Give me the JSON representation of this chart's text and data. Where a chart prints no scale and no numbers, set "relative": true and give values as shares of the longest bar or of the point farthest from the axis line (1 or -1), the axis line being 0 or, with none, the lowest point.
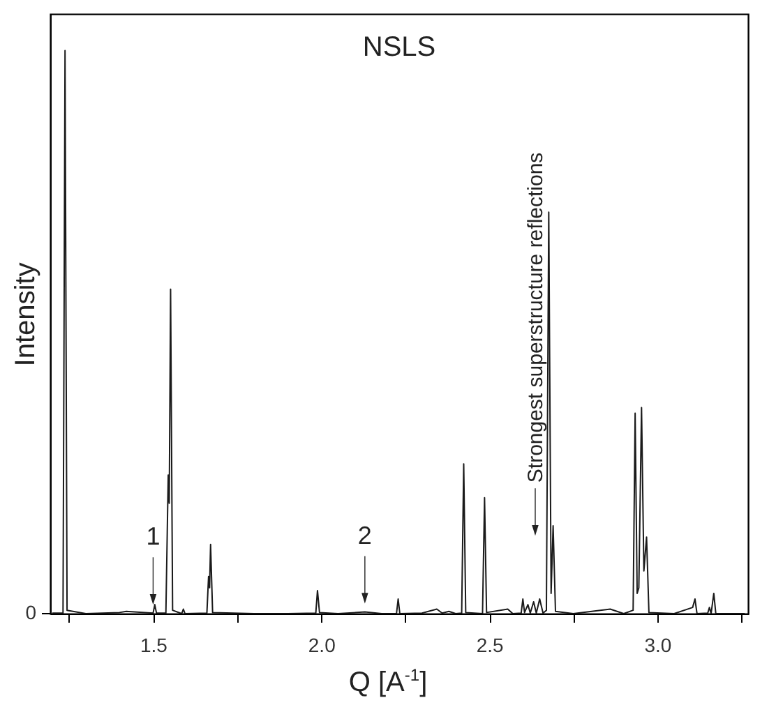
{
  "chart_data": {
    "type": "line",
    "title": "NSLS",
    "xlabel": "Q [A$^{-1}$]",
    "ylabel": "Intensity",
    "relative": true,
    "xlim": [
      1.194,
      3.27
    ],
    "xticks": [
      {
        "value": 1.25,
        "label": null
      },
      1.5,
      {
        "value": 1.75,
        "label": null
      },
      {
        "value": 2,
        "label": "2.0"
      },
      {
        "value": 2.25,
        "label": null
      },
      2.5,
      {
        "value": 2.75,
        "label": null
      },
      {
        "value": 3,
        "label": "3.0"
      },
      {
        "value": 3.25,
        "label": null
      }
    ],
    "annotations": [
      {
        "text": "1",
        "x": 1.5,
        "y": 0.001
      },
      {
        "text": "2",
        "x": 2.13,
        "y": 0.003
      },
      "Strongest superstructure reflections",
      "0"
    ],
    "series": [
      {
        "color": "#1a1a1a",
        "x": [
          1.2,
          1.232,
          1.238,
          1.244,
          1.3,
          1.4,
          1.42,
          1.5,
          1.505,
          1.51,
          1.538,
          1.545,
          1.548,
          1.552,
          1.558,
          1.585,
          1.59,
          1.595,
          1.66,
          1.665,
          1.668,
          1.671,
          1.677,
          1.8,
          1.9,
          1.984,
          1.989,
          1.995,
          2.05,
          2.13,
          2.18,
          2.224,
          2.229,
          2.234,
          2.3,
          2.344,
          2.36,
          2.38,
          2.4,
          2.418,
          2.424,
          2.43,
          2.48,
          2.486,
          2.492,
          2.555,
          2.57,
          2.595,
          2.6,
          2.605,
          2.615,
          2.622,
          2.632,
          2.64,
          2.65,
          2.66,
          2.67,
          2.677,
          2.684,
          2.69,
          2.697,
          2.75,
          2.86,
          2.9,
          2.928,
          2.934,
          2.94,
          2.945,
          2.953,
          2.96,
          2.968,
          2.975,
          3.05,
          3.105,
          3.112,
          3.118,
          3.15,
          3.155,
          3.16,
          3.168,
          3.174,
          3.26
        ],
        "values": [
          0.001,
          0.001,
          1.0,
          0.006,
          0,
          0.002,
          0.004,
          0.001,
          0.016,
          0.001,
          0.001,
          0.246,
          0.196,
          0.576,
          0.006,
          0,
          0.008,
          0,
          0.001,
          0.066,
          0.046,
          0.123,
          0.002,
          0,
          0,
          0.001,
          0.041,
          0.002,
          0,
          0.003,
          0,
          0,
          0.026,
          0,
          0.001,
          0.008,
          0.001,
          0.004,
          0,
          0.001,
          0.266,
          0.002,
          0,
          0.206,
          0.002,
          0.008,
          0,
          0.001,
          0.026,
          0.002,
          0.016,
          0.001,
          0.021,
          0.001,
          0.026,
          0.001,
          0.006,
          0.713,
          0.036,
          0.156,
          0.004,
          0,
          0.008,
          0,
          0.006,
          0.356,
          0.036,
          0.046,
          0.366,
          0.076,
          0.136,
          0.002,
          0,
          0.011,
          0.026,
          0,
          0.001,
          0.011,
          0,
          0.036,
          0,
          0
        ]
      }
    ]
  }
}
